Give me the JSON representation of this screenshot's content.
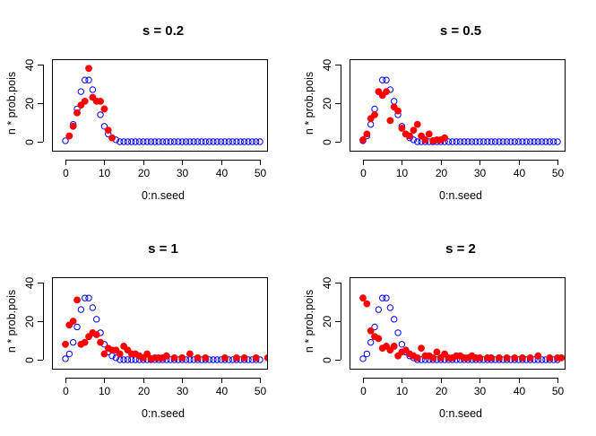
{
  "figure": {
    "background": "#ffffff"
  },
  "colors": {
    "expected": "#0000ff",
    "observed": "#ff0000",
    "axis": "#000000"
  },
  "chart_data": [
    {
      "type": "scatter",
      "title": "s = 0.2",
      "xlabel": "0:n.seed",
      "ylabel": "n * prob.pois",
      "xlim": [
        0,
        50
      ],
      "ylim": [
        0,
        40
      ],
      "xticks": [
        0,
        10,
        20,
        30,
        40,
        50
      ],
      "yticks": [
        0,
        20,
        40
      ],
      "grid": false,
      "series": [
        {
          "marker": "open-circle",
          "color": "#0000ff",
          "x": [
            0,
            1,
            2,
            3,
            4,
            5,
            6,
            7,
            8,
            9,
            10,
            11,
            12,
            13,
            14,
            15,
            16,
            17,
            18,
            19,
            20,
            21,
            22,
            23,
            24,
            25,
            26,
            27,
            28,
            29,
            30,
            31,
            32,
            33,
            34,
            35,
            36,
            37,
            38,
            39,
            40,
            41,
            42,
            43,
            44,
            45,
            46,
            47,
            48,
            49,
            50
          ],
          "y": [
            0.5,
            3,
            9,
            17,
            26,
            32,
            32,
            27,
            21,
            14,
            8,
            4,
            2,
            1,
            0,
            0,
            0,
            0,
            0,
            0,
            0,
            0,
            0,
            0,
            0,
            0,
            0,
            0,
            0,
            0,
            0,
            0,
            0,
            0,
            0,
            0,
            0,
            0,
            0,
            0,
            0,
            0,
            0,
            0,
            0,
            0,
            0,
            0,
            0,
            0,
            0
          ]
        },
        {
          "marker": "filled-circle",
          "color": "#ff0000",
          "x": [
            1,
            2,
            3,
            4,
            5,
            6,
            7,
            8,
            9,
            10,
            11,
            12
          ],
          "y": [
            3,
            8,
            15,
            19,
            21,
            38,
            23,
            21,
            21,
            17,
            6,
            2
          ]
        }
      ]
    },
    {
      "type": "scatter",
      "title": "s = 0.5",
      "xlabel": "0:n.seed",
      "ylabel": "n * prob.pois",
      "xlim": [
        0,
        50
      ],
      "ylim": [
        0,
        40
      ],
      "xticks": [
        0,
        10,
        20,
        30,
        40,
        50
      ],
      "yticks": [
        0,
        20,
        40
      ],
      "grid": false,
      "series": [
        {
          "marker": "open-circle",
          "color": "#0000ff",
          "x": [
            0,
            1,
            2,
            3,
            4,
            5,
            6,
            7,
            8,
            9,
            10,
            11,
            12,
            13,
            14,
            15,
            16,
            17,
            18,
            19,
            20,
            21,
            22,
            23,
            24,
            25,
            26,
            27,
            28,
            29,
            30,
            31,
            32,
            33,
            34,
            35,
            36,
            37,
            38,
            39,
            40,
            41,
            42,
            43,
            44,
            45,
            46,
            47,
            48,
            49,
            50
          ],
          "y": [
            0.5,
            3,
            9,
            17,
            26,
            32,
            32,
            27,
            21,
            14,
            8,
            4,
            2,
            1,
            0,
            0,
            0,
            0,
            0,
            0,
            0,
            0,
            0,
            0,
            0,
            0,
            0,
            0,
            0,
            0,
            0,
            0,
            0,
            0,
            0,
            0,
            0,
            0,
            0,
            0,
            0,
            0,
            0,
            0,
            0,
            0,
            0,
            0,
            0,
            0,
            0
          ]
        },
        {
          "marker": "filled-circle",
          "color": "#ff0000",
          "x": [
            0,
            1,
            2,
            3,
            4,
            5,
            6,
            7,
            8,
            9,
            10,
            11,
            12,
            13,
            14,
            15,
            16,
            17,
            18,
            19,
            20,
            21
          ],
          "y": [
            1,
            4,
            12,
            14,
            26,
            24,
            26,
            11,
            18,
            16,
            7,
            4,
            3,
            6,
            9,
            3,
            1,
            4,
            0.5,
            1,
            1,
            2
          ]
        }
      ]
    },
    {
      "type": "scatter",
      "title": "s = 1",
      "xlabel": "0:n.seed",
      "ylabel": "n * prob.pois",
      "xlim": [
        0,
        50
      ],
      "ylim": [
        0,
        40
      ],
      "xticks": [
        0,
        10,
        20,
        30,
        40,
        50
      ],
      "yticks": [
        0,
        20,
        40
      ],
      "grid": false,
      "series": [
        {
          "marker": "open-circle",
          "color": "#0000ff",
          "x": [
            0,
            1,
            2,
            3,
            4,
            5,
            6,
            7,
            8,
            9,
            10,
            11,
            12,
            13,
            14,
            15,
            16,
            17,
            18,
            19,
            20,
            21,
            22,
            23,
            24,
            25,
            26,
            27,
            28,
            29,
            30,
            31,
            32,
            33,
            34,
            35,
            36,
            37,
            38,
            39,
            40,
            41,
            42,
            43,
            44,
            45,
            46,
            47,
            48,
            49,
            50
          ],
          "y": [
            0.5,
            3,
            9,
            17,
            26,
            32,
            32,
            27,
            21,
            14,
            8,
            4,
            2,
            1,
            0,
            0,
            0,
            0,
            0,
            0,
            0,
            0,
            0,
            0,
            0,
            0,
            0,
            0,
            0,
            0,
            0,
            0,
            0,
            0,
            0,
            0,
            0,
            0,
            0,
            0,
            0,
            0,
            0,
            0,
            0,
            0,
            0,
            0,
            0,
            0,
            0
          ]
        },
        {
          "marker": "filled-circle",
          "color": "#ff0000",
          "x": [
            0,
            1,
            2,
            3,
            4,
            5,
            6,
            7,
            8,
            9,
            10,
            11,
            12,
            13,
            14,
            15,
            16,
            17,
            18,
            19,
            20,
            21,
            22,
            23,
            24,
            25,
            26,
            28,
            30,
            32,
            34,
            36,
            41,
            44,
            46,
            49,
            52
          ],
          "y": [
            8,
            18,
            20,
            31,
            8,
            9,
            12,
            14,
            13,
            9,
            3,
            6,
            5,
            5,
            3,
            7,
            5,
            3,
            3,
            2,
            1,
            3,
            0.5,
            1,
            1,
            1,
            2,
            1,
            1,
            3,
            1,
            1,
            1,
            1,
            1,
            1,
            1
          ]
        }
      ]
    },
    {
      "type": "scatter",
      "title": "s = 2",
      "xlabel": "0:n.seed",
      "ylabel": "n * prob.pois",
      "xlim": [
        0,
        50
      ],
      "ylim": [
        0,
        40
      ],
      "xticks": [
        0,
        10,
        20,
        30,
        40,
        50
      ],
      "yticks": [
        0,
        20,
        40
      ],
      "grid": false,
      "series": [
        {
          "marker": "open-circle",
          "color": "#0000ff",
          "x": [
            0,
            1,
            2,
            3,
            4,
            5,
            6,
            7,
            8,
            9,
            10,
            11,
            12,
            13,
            14,
            15,
            16,
            17,
            18,
            19,
            20,
            21,
            22,
            23,
            24,
            25,
            26,
            27,
            28,
            29,
            30,
            31,
            32,
            33,
            34,
            35,
            36,
            37,
            38,
            39,
            40,
            41,
            42,
            43,
            44,
            45,
            46,
            47,
            48,
            49,
            50
          ],
          "y": [
            0.5,
            3,
            9,
            17,
            26,
            32,
            32,
            27,
            21,
            14,
            8,
            4,
            2,
            1,
            0,
            0,
            0,
            0,
            0,
            0,
            0,
            0,
            0,
            0,
            0,
            0,
            0,
            0,
            0,
            0,
            0,
            0,
            0,
            0,
            0,
            0,
            0,
            0,
            0,
            0,
            0,
            0,
            0,
            0,
            0,
            0,
            0,
            0,
            0,
            0,
            0
          ]
        },
        {
          "marker": "filled-circle",
          "color": "#ff0000",
          "x": [
            0,
            1,
            2,
            3,
            4,
            5,
            6,
            7,
            8,
            9,
            10,
            11,
            12,
            13,
            14,
            15,
            16,
            17,
            18,
            19,
            20,
            21,
            22,
            23,
            24,
            25,
            26,
            27,
            28,
            29,
            30,
            32,
            33,
            35,
            37,
            39,
            41,
            43,
            45,
            48,
            50,
            51
          ],
          "y": [
            32,
            29,
            15,
            12,
            11,
            6,
            7,
            5,
            7,
            2,
            4,
            5,
            3,
            2,
            1,
            6,
            2,
            2,
            1,
            4,
            1,
            3,
            1,
            1,
            2,
            2,
            1,
            1,
            2,
            1,
            1,
            1,
            1,
            1,
            1,
            1,
            1,
            1,
            2,
            1,
            1,
            1
          ]
        }
      ]
    }
  ]
}
